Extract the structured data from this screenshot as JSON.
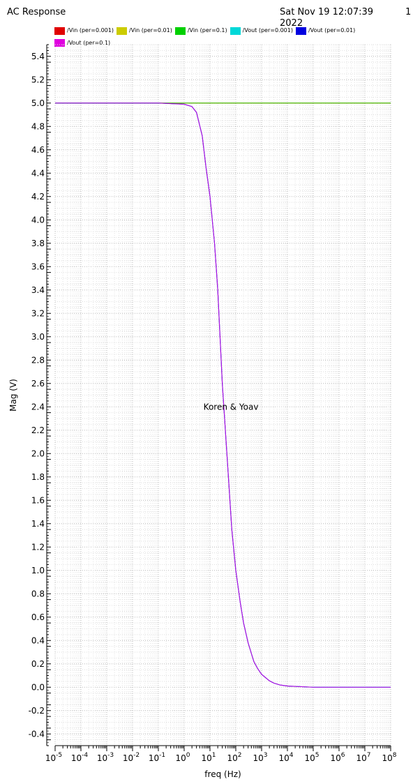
{
  "header": {
    "title": "AC Response",
    "datetime_line1": "Sat Nov 19 12:07:39",
    "datetime_line2": "2022",
    "page_number": "1"
  },
  "chart_data": {
    "type": "line",
    "xlabel": "freq (Hz)",
    "ylabel": "Mag (V)",
    "xscale": "log",
    "xlim": [
      1e-05,
      100000000
    ],
    "ylim": [
      -0.5,
      5.5
    ],
    "x_tick_exponents": [
      -5,
      -4,
      -3,
      -2,
      -1,
      0,
      1,
      2,
      3,
      4,
      5,
      6,
      7,
      8
    ],
    "x_tick_labels": [
      "10",
      "10",
      "10",
      "10",
      "10",
      "10",
      "10",
      "10",
      "10",
      "10",
      "10",
      "10",
      "10",
      "10"
    ],
    "x_tick_label_exponents": [
      "-5",
      "-4",
      "-3",
      "-2",
      "-1",
      "0",
      "1",
      "2",
      "3",
      "4",
      "5",
      "6",
      "7",
      "8"
    ],
    "y_ticks": [
      5.4,
      5.2,
      5.0,
      4.8,
      4.6,
      4.4,
      4.2,
      4.0,
      3.8,
      3.6,
      3.4,
      3.2,
      3.0,
      2.8,
      2.6,
      2.4,
      2.2,
      2.0,
      1.8,
      1.6,
      1.4,
      1.2,
      1.0,
      0.8,
      0.6,
      0.4,
      0.2,
      0.0,
      -0.2,
      -0.4
    ],
    "y_tick_labels": [
      "5.4",
      "5.2",
      "5.0",
      "4.8",
      "4.6",
      "4.4",
      "4.2",
      "4.0",
      "3.8",
      "3.6",
      "3.4",
      "3.2",
      "3.0",
      "2.8",
      "2.6",
      "2.4",
      "2.2",
      "2.0",
      "1.8",
      "1.6",
      "1.4",
      "1.2",
      "1.0",
      "0.8",
      "0.6",
      "0.4",
      "0.2",
      "0.0",
      "-0.2",
      "-0.4"
    ],
    "grid": true,
    "legend_position": "top",
    "annotation": "Koren & Yoav",
    "annotation_at": [
      5.6,
      2.4
    ],
    "series": [
      {
        "name": "/Vin (per=0.001)",
        "color": "#e00000",
        "x": [
          1e-05,
          100000000
        ],
        "y": [
          5.0,
          5.0
        ]
      },
      {
        "name": "/Vin (per=0.01)",
        "color": "#cccc00",
        "x": [
          1e-05,
          100000000
        ],
        "y": [
          5.0,
          5.0
        ]
      },
      {
        "name": "/Vin (per=0.1)",
        "color": "#00d000",
        "x": [
          1e-05,
          100000000
        ],
        "y": [
          5.0,
          5.0
        ]
      },
      {
        "name": "/Vout (per=0.001)",
        "color": "#00d8d8",
        "x": [
          1e-05,
          0.1,
          1,
          2,
          3,
          5,
          7,
          10,
          15,
          20,
          30,
          50,
          70,
          100,
          150,
          200,
          300,
          500,
          700,
          1000,
          2000,
          3000,
          5000,
          10000,
          100000,
          100000000
        ],
        "y": [
          5.0,
          5.0,
          4.99,
          4.97,
          4.92,
          4.72,
          4.45,
          4.2,
          3.8,
          3.4,
          2.6,
          1.85,
          1.35,
          1.0,
          0.72,
          0.55,
          0.38,
          0.22,
          0.16,
          0.11,
          0.055,
          0.035,
          0.02,
          0.01,
          0.0,
          0.0
        ]
      },
      {
        "name": "/Vout (per=0.01)",
        "color": "#0000e0",
        "x": [
          1e-05,
          0.1,
          1,
          2,
          3,
          5,
          7,
          10,
          15,
          20,
          30,
          50,
          70,
          100,
          150,
          200,
          300,
          500,
          700,
          1000,
          2000,
          3000,
          5000,
          10000,
          100000,
          100000000
        ],
        "y": [
          5.0,
          5.0,
          4.99,
          4.97,
          4.92,
          4.72,
          4.45,
          4.2,
          3.8,
          3.4,
          2.6,
          1.85,
          1.35,
          1.0,
          0.72,
          0.55,
          0.38,
          0.22,
          0.16,
          0.11,
          0.055,
          0.035,
          0.02,
          0.01,
          0.0,
          0.0
        ]
      },
      {
        "name": "/Vout (per=0.1)",
        "color": "#e000e0",
        "x": [
          1e-05,
          0.1,
          1,
          2,
          3,
          5,
          7,
          10,
          15,
          20,
          30,
          50,
          70,
          100,
          150,
          200,
          300,
          500,
          700,
          1000,
          2000,
          3000,
          5000,
          10000,
          100000,
          100000000
        ],
        "y": [
          5.0,
          5.0,
          4.99,
          4.97,
          4.92,
          4.72,
          4.45,
          4.2,
          3.8,
          3.4,
          2.6,
          1.85,
          1.35,
          1.0,
          0.72,
          0.55,
          0.38,
          0.22,
          0.16,
          0.11,
          0.055,
          0.035,
          0.02,
          0.01,
          0.0,
          0.0
        ]
      }
    ]
  }
}
